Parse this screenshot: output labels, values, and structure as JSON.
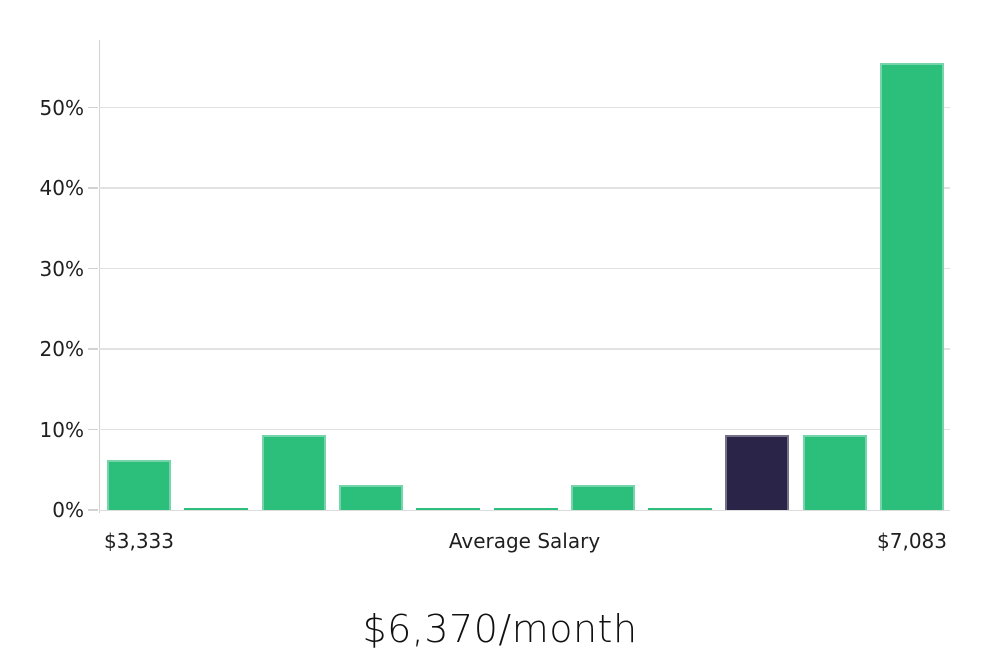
{
  "colors": {
    "bar_green": "#2cbe7b",
    "bar_highlight_navy": "#2a2449",
    "gridline_gray": "#e2e2e2",
    "axis_gray": "#d2d2d2",
    "text_dark": "#1f1f1f"
  },
  "chart_data": {
    "type": "bar",
    "title": "$6,370/month",
    "xlabel": "",
    "ylabel": "",
    "ylim": [
      0,
      58.4
    ],
    "grid": true,
    "legend": false,
    "y_ticks": [
      {
        "label": "0%",
        "value": 0
      },
      {
        "label": "10%",
        "value": 10
      },
      {
        "label": "20%",
        "value": 20
      },
      {
        "label": "30%",
        "value": 30
      },
      {
        "label": "40%",
        "value": 40
      },
      {
        "label": "50%",
        "value": 50
      }
    ],
    "bars": [
      {
        "value": 6.2,
        "highlighted": false
      },
      {
        "value": 0.2,
        "highlighted": false
      },
      {
        "value": 9.3,
        "highlighted": false
      },
      {
        "value": 3.1,
        "highlighted": false
      },
      {
        "value": 0.2,
        "highlighted": false
      },
      {
        "value": 0.2,
        "highlighted": false
      },
      {
        "value": 3.1,
        "highlighted": false
      },
      {
        "value": 0.2,
        "highlighted": false
      },
      {
        "value": 9.3,
        "highlighted": true
      },
      {
        "value": 9.3,
        "highlighted": false
      },
      {
        "value": 55.6,
        "highlighted": false
      }
    ],
    "x_axis_labels": [
      {
        "text": "$3,333",
        "anchor": "bar",
        "bar_index": 0
      },
      {
        "text": "Average Salary",
        "anchor": "axis-center"
      },
      {
        "text": "$7,083",
        "anchor": "bar",
        "bar_index": 10
      }
    ]
  }
}
